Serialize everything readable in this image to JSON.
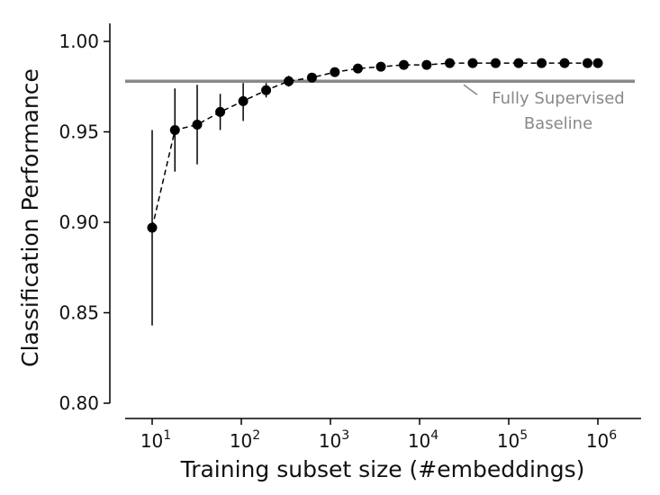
{
  "chart_data": {
    "type": "scatter",
    "xlabel": "Training subset size (#embeddings)",
    "ylabel": "Classification Performance",
    "x_scale": "log",
    "xlim": [
      5,
      2000000
    ],
    "ylim": [
      0.8,
      1.005
    ],
    "x_ticks": [
      {
        "value": 10,
        "base": "10",
        "exp": "1"
      },
      {
        "value": 100,
        "base": "10",
        "exp": "2"
      },
      {
        "value": 1000,
        "base": "10",
        "exp": "3"
      },
      {
        "value": 10000,
        "base": "10",
        "exp": "4"
      },
      {
        "value": 100000,
        "base": "10",
        "exp": "5"
      },
      {
        "value": 1000000,
        "base": "10",
        "exp": "6"
      }
    ],
    "y_ticks": [
      {
        "value": 0.8,
        "label": "0.80"
      },
      {
        "value": 0.85,
        "label": "0.85"
      },
      {
        "value": 0.9,
        "label": "0.90"
      },
      {
        "value": 0.95,
        "label": "0.95"
      },
      {
        "value": 1.0,
        "label": "1.00"
      }
    ],
    "grid": false,
    "line_style": "dashed",
    "points": [
      {
        "x": 10,
        "y": 0.897,
        "lo": 0.843,
        "hi": 0.951
      },
      {
        "x": 18,
        "y": 0.951,
        "lo": 0.928,
        "hi": 0.974
      },
      {
        "x": 32,
        "y": 0.954,
        "lo": 0.932,
        "hi": 0.976
      },
      {
        "x": 58,
        "y": 0.961,
        "lo": 0.951,
        "hi": 0.971
      },
      {
        "x": 105,
        "y": 0.967,
        "lo": 0.956,
        "hi": 0.977
      },
      {
        "x": 190,
        "y": 0.973,
        "lo": 0.969,
        "hi": 0.977
      },
      {
        "x": 340,
        "y": 0.978,
        "lo": 0.975,
        "hi": 0.981
      },
      {
        "x": 620,
        "y": 0.98,
        "lo": 0.979,
        "hi": 0.981
      },
      {
        "x": 1120,
        "y": 0.983,
        "lo": 0.982,
        "hi": 0.984
      },
      {
        "x": 2030,
        "y": 0.985,
        "lo": 0.984,
        "hi": 0.986
      },
      {
        "x": 3680,
        "y": 0.986,
        "lo": 0.985,
        "hi": 0.987
      },
      {
        "x": 6650,
        "y": 0.987,
        "lo": 0.986,
        "hi": 0.988
      },
      {
        "x": 12000,
        "y": 0.987,
        "lo": 0.986,
        "hi": 0.988
      },
      {
        "x": 21800,
        "y": 0.988,
        "lo": 0.987,
        "hi": 0.989
      },
      {
        "x": 39400,
        "y": 0.988,
        "lo": 0.987,
        "hi": 0.989
      },
      {
        "x": 71300,
        "y": 0.988,
        "lo": 0.987,
        "hi": 0.989
      },
      {
        "x": 129000,
        "y": 0.988,
        "lo": 0.987,
        "hi": 0.989
      },
      {
        "x": 234000,
        "y": 0.988,
        "lo": 0.987,
        "hi": 0.989
      },
      {
        "x": 423000,
        "y": 0.988,
        "lo": 0.987,
        "hi": 0.989
      },
      {
        "x": 765000,
        "y": 0.988,
        "lo": 0.987,
        "hi": 0.989
      },
      {
        "x": 1000000,
        "y": 0.988,
        "lo": 0.987,
        "hi": 0.989
      }
    ],
    "baseline": {
      "value": 0.978,
      "label_lines": [
        "Fully Supervised",
        "Baseline"
      ],
      "color": "#888888"
    },
    "marker_color": "#000000"
  }
}
